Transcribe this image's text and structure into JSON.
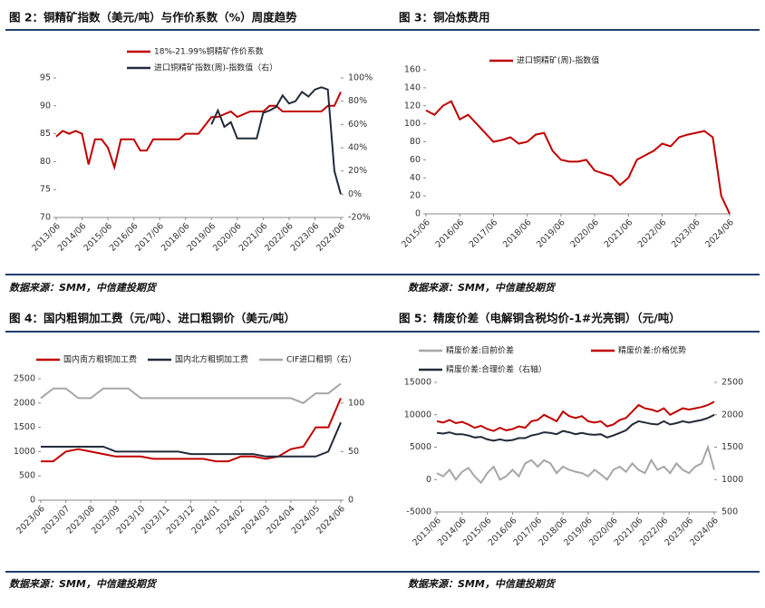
{
  "chart_data": [
    {
      "type": "line",
      "title": "图 2：铜精矿指数（美元/吨）与作价系数（%）周度趋势",
      "source": "数据来源：SMM，中信建投期货",
      "legend": "top-left",
      "categories": [
        "2013/06",
        null,
        null,
        null,
        "2014/06",
        null,
        null,
        null,
        "2015/06",
        null,
        null,
        null,
        "2016/06",
        null,
        null,
        null,
        "2017/06",
        null,
        null,
        null,
        "2018/06",
        null,
        null,
        null,
        "2019/06",
        null,
        null,
        null,
        "2020/06",
        null,
        null,
        null,
        "2021/06",
        null,
        null,
        null,
        "2022/06",
        null,
        null,
        null,
        "2023/06",
        null,
        null,
        null,
        "2024/06"
      ],
      "ylim": [
        70,
        95
      ],
      "yticks": [
        70,
        75,
        80,
        85,
        90,
        95
      ],
      "y2lim": [
        -20,
        100
      ],
      "y2ticks": [
        {
          "value": -20,
          "label": "-20%"
        },
        {
          "value": 0,
          "label": "0%"
        },
        {
          "value": 20,
          "label": "20%"
        },
        {
          "value": 40,
          "label": "40%"
        },
        {
          "value": 60,
          "label": "60%"
        },
        {
          "value": 80,
          "label": "80%"
        },
        {
          "value": 100,
          "label": "100%"
        }
      ],
      "series": [
        {
          "name": "18%-21.99%铜精矿作价系数",
          "color": "#c00000",
          "values": [
            84.5,
            85.5,
            85,
            85.5,
            85,
            79.5,
            84,
            84,
            82.5,
            79,
            84,
            84,
            84,
            82,
            82,
            84,
            84,
            84,
            84,
            84,
            85,
            85,
            85,
            86.5,
            88,
            88,
            88.5,
            89,
            88,
            88.5,
            89,
            89,
            89,
            90,
            90,
            89,
            89,
            89,
            89,
            89,
            89,
            89,
            90,
            90,
            92.5
          ]
        },
        {
          "name": "进口铜精矿指数(周)-指数值（右）",
          "color": "#222b3a",
          "axis": "y2",
          "values": [
            null,
            null,
            null,
            null,
            null,
            null,
            null,
            null,
            null,
            null,
            null,
            null,
            null,
            null,
            null,
            null,
            null,
            null,
            null,
            null,
            null,
            null,
            null,
            null,
            60,
            72,
            58,
            62,
            48,
            48,
            48,
            48,
            70,
            72,
            75,
            85,
            78,
            80,
            88,
            84,
            90,
            92,
            90,
            20,
            0
          ]
        }
      ]
    },
    {
      "type": "line",
      "title": "图 3：铜冶炼费用",
      "source": "数据来源：SMM，中信建投期货",
      "legend": "top-center",
      "categories": [
        "2015/06",
        null,
        null,
        null,
        "2016/06",
        null,
        null,
        null,
        "2017/06",
        null,
        null,
        null,
        "2018/06",
        null,
        null,
        null,
        "2019/06",
        null,
        null,
        null,
        "2020/06",
        null,
        null,
        null,
        "2021/06",
        null,
        null,
        null,
        "2022/06",
        null,
        null,
        null,
        "2023/06",
        null,
        null,
        null,
        "2024/06"
      ],
      "ylim": [
        0,
        160
      ],
      "yticks": [
        0,
        20,
        40,
        60,
        80,
        100,
        120,
        140,
        160
      ],
      "series": [
        {
          "name": "进口铜精矿(周)-指数值",
          "color": "#c00000",
          "values": [
            115,
            110,
            120,
            125,
            105,
            110,
            100,
            90,
            80,
            82,
            85,
            78,
            80,
            88,
            90,
            70,
            60,
            58,
            58,
            60,
            48,
            45,
            42,
            32,
            40,
            60,
            65,
            70,
            78,
            75,
            85,
            88,
            90,
            92,
            85,
            20,
            0
          ]
        }
      ]
    },
    {
      "type": "line",
      "title": "图 4：国内粗铜加工费（元/吨）、进口粗铜价（美元/吨）",
      "source": "数据来源：SMM，中信建投期货",
      "legend": "top",
      "categories": [
        "2023/06",
        null,
        "2023/07",
        null,
        "2023/08",
        null,
        "2023/09",
        null,
        "2023/10",
        null,
        "2023/11",
        null,
        "2023/12",
        null,
        "2024/01",
        null,
        "2024/02",
        null,
        "2024/03",
        null,
        "2024/04",
        null,
        "2024/05",
        null,
        "2024/06"
      ],
      "ylim": [
        0,
        2500
      ],
      "yticks": [
        0,
        500,
        1000,
        1500,
        2000,
        2500
      ],
      "y2lim": [
        0,
        125
      ],
      "y2ticks": [
        0,
        50,
        100
      ],
      "series": [
        {
          "name": "国内南方粗铜加工费",
          "color": "#c00000",
          "values": [
            800,
            800,
            1000,
            1050,
            1000,
            950,
            900,
            900,
            900,
            850,
            850,
            850,
            850,
            850,
            800,
            800,
            900,
            900,
            850,
            900,
            1050,
            1100,
            1500,
            1500,
            2100
          ]
        },
        {
          "name": "国内北方粗铜加工费",
          "color": "#222b3a",
          "values": [
            1100,
            1100,
            1100,
            1100,
            1100,
            1100,
            1000,
            1000,
            1000,
            1000,
            1000,
            1000,
            950,
            950,
            950,
            950,
            950,
            950,
            900,
            900,
            900,
            900,
            900,
            1000,
            1600
          ]
        },
        {
          "name": "CIF进口粗铜（右）",
          "color": "#a6a6a6",
          "axis": "y2",
          "values": [
            105,
            115,
            115,
            105,
            105,
            115,
            115,
            115,
            105,
            105,
            105,
            105,
            105,
            105,
            105,
            105,
            105,
            105,
            105,
            105,
            105,
            100,
            110,
            110,
            120
          ]
        }
      ]
    },
    {
      "type": "line",
      "title": "图 5：精废价差（电解铜含税均价-1#光亮铜）（元/吨）",
      "source": "数据来源：SMM，中信建投期货",
      "legend": "top-left",
      "categories": [
        "2013/06",
        null,
        null,
        null,
        "2014/06",
        null,
        null,
        null,
        "2015/06",
        null,
        null,
        null,
        "2016/06",
        null,
        null,
        null,
        "2017/06",
        null,
        null,
        null,
        "2018/06",
        null,
        null,
        null,
        "2019/06",
        null,
        null,
        null,
        "2020/06",
        null,
        null,
        null,
        "2021/06",
        null,
        null,
        null,
        "2022/06",
        null,
        null,
        null,
        "2023/06",
        null,
        null,
        null,
        "2024/06"
      ],
      "ylim": [
        -5000,
        15000
      ],
      "yticks": [
        -5000,
        0,
        5000,
        10000,
        15000
      ],
      "y2lim": [
        500,
        2500
      ],
      "y2ticks": [
        500,
        1000,
        1500,
        2000,
        2500
      ],
      "series": [
        {
          "name": "精废价差:目前价差",
          "color": "#a6a6a6",
          "values": [
            1000,
            500,
            1500,
            0,
            1200,
            1800,
            500,
            -500,
            1000,
            2000,
            0,
            500,
            1500,
            500,
            2500,
            3000,
            2000,
            3000,
            2500,
            1000,
            2000,
            1500,
            1200,
            1000,
            500,
            1500,
            800,
            0,
            1500,
            2000,
            1200,
            2500,
            1500,
            1000,
            3000,
            1500,
            2000,
            1000,
            2500,
            1500,
            1000,
            2000,
            2500,
            5000,
            1500
          ]
        },
        {
          "name": "精废价差:价格优势",
          "color": "#c00000",
          "values": [
            9000,
            8800,
            9200,
            8700,
            8900,
            8500,
            8000,
            8300,
            7800,
            7500,
            8000,
            7600,
            7800,
            8200,
            8000,
            9000,
            9200,
            10000,
            9500,
            9000,
            10500,
            9800,
            9500,
            9800,
            9000,
            8800,
            9000,
            8200,
            8500,
            9200,
            9500,
            10500,
            11500,
            11000,
            10800,
            10500,
            11000,
            10000,
            10500,
            11000,
            10800,
            11000,
            11200,
            11500,
            12000
          ]
        },
        {
          "name": "精废价差:合理价差（右轴）",
          "color": "#222b3a",
          "axis": "y2",
          "values": [
            1720,
            1710,
            1730,
            1700,
            1700,
            1680,
            1650,
            1660,
            1620,
            1600,
            1620,
            1600,
            1610,
            1640,
            1640,
            1680,
            1700,
            1730,
            1720,
            1700,
            1750,
            1730,
            1700,
            1720,
            1700,
            1690,
            1700,
            1650,
            1680,
            1720,
            1760,
            1850,
            1900,
            1880,
            1860,
            1850,
            1900,
            1850,
            1870,
            1900,
            1880,
            1900,
            1920,
            1950,
            2000
          ]
        }
      ]
    }
  ]
}
